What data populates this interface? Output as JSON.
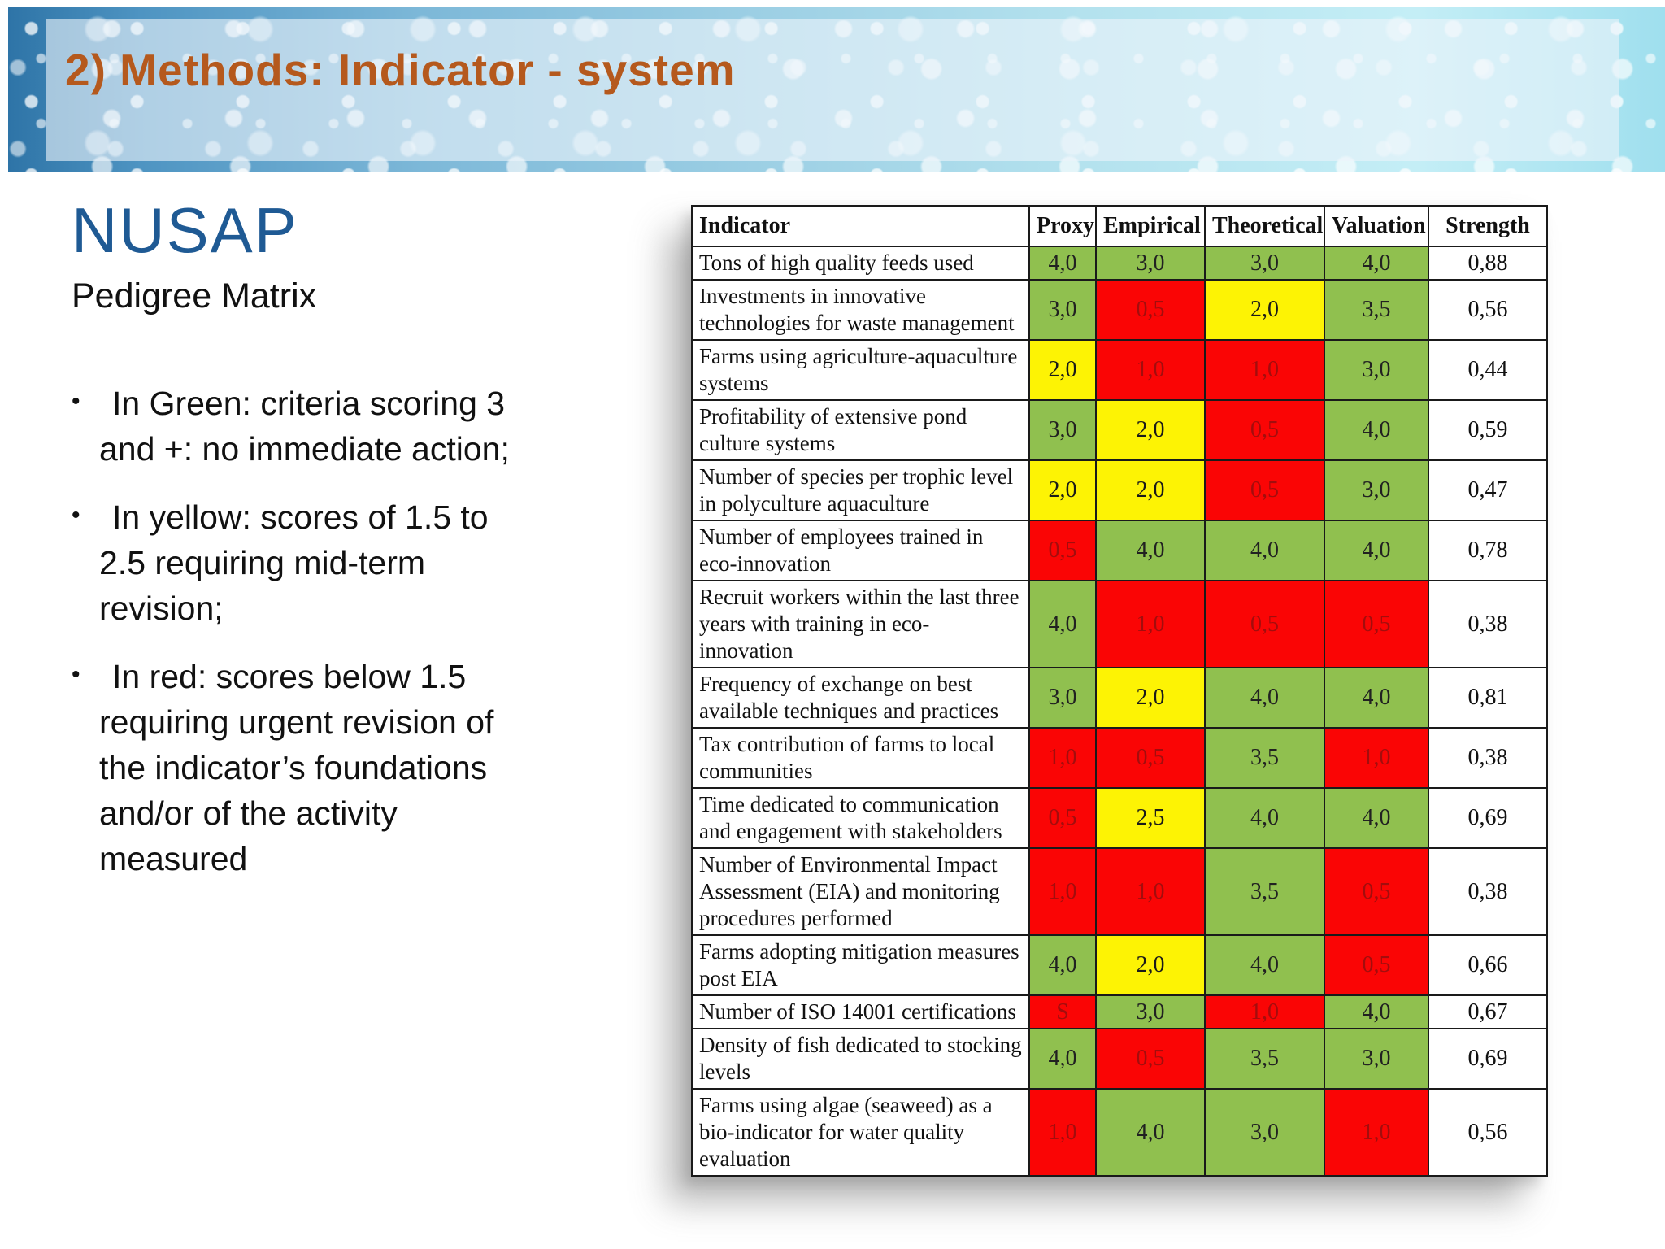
{
  "slide": {
    "title": "2) Methods: Indicator - system",
    "heading": "NUSAP",
    "subheading": "Pedigree Matrix",
    "bullets": [
      " In Green: criteria scoring 3 and +: no immediate action;",
      " In yellow: scores of 1.5 to 2.5 requiring mid-term revision;",
      "In red: scores below 1.5 requiring urgent revision of the indicator’s foundations and/or of the activity measured"
    ]
  },
  "colors": {
    "title_orange": "#b5591d",
    "heading_blue": "#1f5a94",
    "cell_green": "#90c04f",
    "cell_yellow": "#fdf304",
    "cell_red": "#fa0505",
    "red_cell_text": "#a30d0d"
  },
  "table": {
    "columns": [
      "Indicator",
      "Proxy",
      "Empirical",
      "Theoretical",
      "Valuation",
      "Strength"
    ],
    "rows": [
      {
        "indicator": "Tons of high quality feeds used",
        "scores": [
          {
            "v": "4,0",
            "c": "green"
          },
          {
            "v": "3,0",
            "c": "green"
          },
          {
            "v": "3,0",
            "c": "green"
          },
          {
            "v": "4,0",
            "c": "green"
          }
        ],
        "strength": "0,88"
      },
      {
        "indicator": "Investments in innovative technologies for waste management",
        "scores": [
          {
            "v": "3,0",
            "c": "green"
          },
          {
            "v": "0,5",
            "c": "red"
          },
          {
            "v": "2,0",
            "c": "yellow"
          },
          {
            "v": "3,5",
            "c": "green"
          }
        ],
        "strength": "0,56"
      },
      {
        "indicator": "Farms using agriculture-aquaculture systems",
        "scores": [
          {
            "v": "2,0",
            "c": "yellow"
          },
          {
            "v": "1,0",
            "c": "red"
          },
          {
            "v": "1,0",
            "c": "red"
          },
          {
            "v": "3,0",
            "c": "green"
          }
        ],
        "strength": "0,44"
      },
      {
        "indicator": "Profitability of extensive pond culture systems",
        "scores": [
          {
            "v": "3,0",
            "c": "green"
          },
          {
            "v": "2,0",
            "c": "yellow"
          },
          {
            "v": "0,5",
            "c": "red"
          },
          {
            "v": "4,0",
            "c": "green"
          }
        ],
        "strength": "0,59"
      },
      {
        "indicator": "Number of species per trophic level in polyculture aquaculture",
        "scores": [
          {
            "v": "2,0",
            "c": "yellow"
          },
          {
            "v": "2,0",
            "c": "yellow"
          },
          {
            "v": "0,5",
            "c": "red"
          },
          {
            "v": "3,0",
            "c": "green"
          }
        ],
        "strength": "0,47"
      },
      {
        "indicator": "Number of employees trained in eco-innovation",
        "scores": [
          {
            "v": "0,5",
            "c": "red"
          },
          {
            "v": "4,0",
            "c": "green"
          },
          {
            "v": "4,0",
            "c": "green"
          },
          {
            "v": "4,0",
            "c": "green"
          }
        ],
        "strength": "0,78"
      },
      {
        "indicator": "Recruit workers within the last three years with training in eco-innovation",
        "scores": [
          {
            "v": "4,0",
            "c": "green"
          },
          {
            "v": "1,0",
            "c": "red"
          },
          {
            "v": "0,5",
            "c": "red"
          },
          {
            "v": "0,5",
            "c": "red"
          }
        ],
        "strength": "0,38"
      },
      {
        "indicator": "Frequency of exchange on best available techniques and practices",
        "scores": [
          {
            "v": "3,0",
            "c": "green"
          },
          {
            "v": "2,0",
            "c": "yellow"
          },
          {
            "v": "4,0",
            "c": "green"
          },
          {
            "v": "4,0",
            "c": "green"
          }
        ],
        "strength": "0,81"
      },
      {
        "indicator": "Tax contribution of farms to local communities",
        "scores": [
          {
            "v": "1,0",
            "c": "red"
          },
          {
            "v": "0,5",
            "c": "red"
          },
          {
            "v": "3,5",
            "c": "green"
          },
          {
            "v": "1,0",
            "c": "red"
          }
        ],
        "strength": "0,38"
      },
      {
        "indicator": "Time dedicated to communication and engagement with stakeholders",
        "scores": [
          {
            "v": "0,5",
            "c": "red"
          },
          {
            "v": "2,5",
            "c": "yellow"
          },
          {
            "v": "4,0",
            "c": "green"
          },
          {
            "v": "4,0",
            "c": "green"
          }
        ],
        "strength": "0,69"
      },
      {
        "indicator": "Number of Environmental Impact Assessment  (EIA) and monitoring procedures performed",
        "scores": [
          {
            "v": "1,0",
            "c": "red"
          },
          {
            "v": "1,0",
            "c": "red"
          },
          {
            "v": "3,5",
            "c": "green"
          },
          {
            "v": "0,5",
            "c": "red"
          }
        ],
        "strength": "0,38"
      },
      {
        "indicator": "Farms adopting mitigation measures post EIA",
        "scores": [
          {
            "v": "4,0",
            "c": "green"
          },
          {
            "v": "2,0",
            "c": "yellow"
          },
          {
            "v": "4,0",
            "c": "green"
          },
          {
            "v": "0,5",
            "c": "red"
          }
        ],
        "strength": "0,66"
      },
      {
        "indicator": "Number of ISO 14001 certifications",
        "scores": [
          {
            "v": "S",
            "c": "red"
          },
          {
            "v": "3,0",
            "c": "green"
          },
          {
            "v": "1,0",
            "c": "red"
          },
          {
            "v": "4,0",
            "c": "green"
          }
        ],
        "strength": "0,67"
      },
      {
        "indicator": "Density of fish dedicated to stocking levels",
        "scores": [
          {
            "v": "4,0",
            "c": "green"
          },
          {
            "v": "0,5",
            "c": "red"
          },
          {
            "v": "3,5",
            "c": "green"
          },
          {
            "v": "3,0",
            "c": "green"
          }
        ],
        "strength": "0,69"
      },
      {
        "indicator": "Farms using algae (seaweed) as a bio-indicator for  water quality evaluation",
        "scores": [
          {
            "v": "1,0",
            "c": "red"
          },
          {
            "v": "4,0",
            "c": "green"
          },
          {
            "v": "3,0",
            "c": "green"
          },
          {
            "v": "1,0",
            "c": "red"
          }
        ],
        "strength": "0,56"
      }
    ]
  }
}
